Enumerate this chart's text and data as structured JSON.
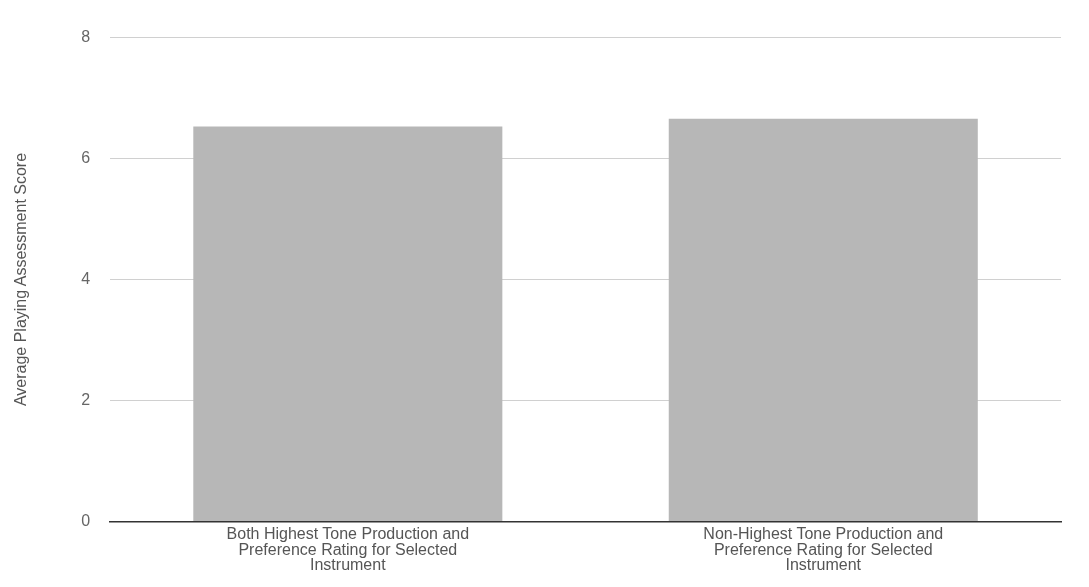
{
  "chart_data": {
    "type": "bar",
    "ylabel": "Average Playing Assessment Score",
    "categories": [
      "Both Highest Tone Production and Preference Rating for Selected Instrument",
      "Non-Highest Tone Production and Preference Rating for Selected Instrument"
    ],
    "values": [
      6.53,
      6.66
    ],
    "color": "#b7b7b7",
    "ylim": [
      0,
      8
    ],
    "yticks": [
      0,
      2,
      4,
      6,
      8
    ],
    "grid": "y"
  }
}
